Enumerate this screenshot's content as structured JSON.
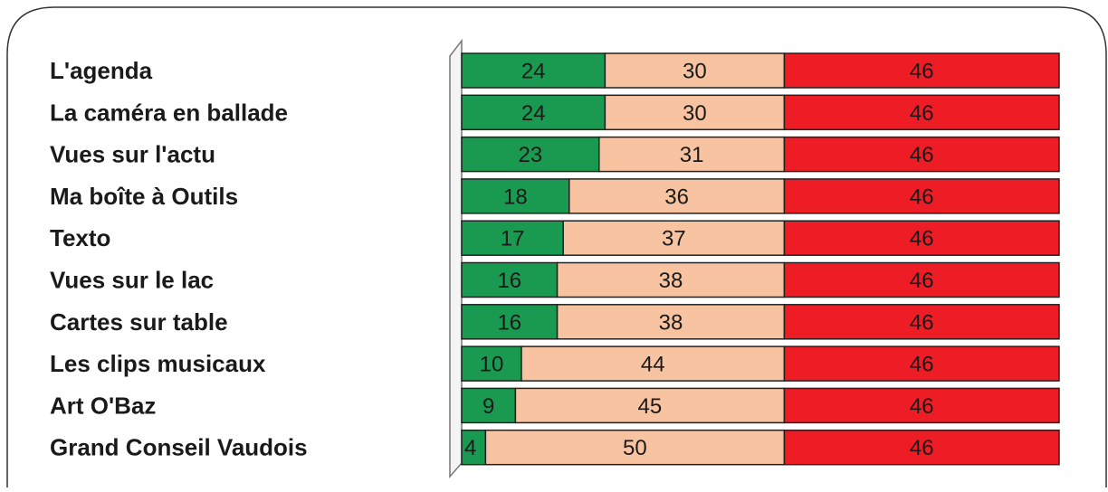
{
  "chart_data": {
    "type": "stacked_bar_horizontal",
    "categories": [
      "L'agenda",
      "La caméra en ballade",
      "Vues sur l'actu",
      "Ma boîte à Outils",
      "Texto",
      "Vues sur le lac",
      "Cartes sur table",
      "Les clips musicaux",
      "Art O'Baz",
      "Grand Conseil Vaudois"
    ],
    "series": [
      {
        "color": "#1a9a50",
        "values": [
          24,
          24,
          23,
          18,
          17,
          16,
          16,
          10,
          9,
          4
        ]
      },
      {
        "color": "#f7c3a0",
        "values": [
          30,
          30,
          31,
          36,
          37,
          38,
          38,
          44,
          45,
          50
        ]
      },
      {
        "color": "#ee1c25",
        "values": [
          46,
          46,
          46,
          46,
          46,
          46,
          46,
          46,
          46,
          46
        ]
      }
    ],
    "xlim": [
      0,
      100
    ]
  }
}
